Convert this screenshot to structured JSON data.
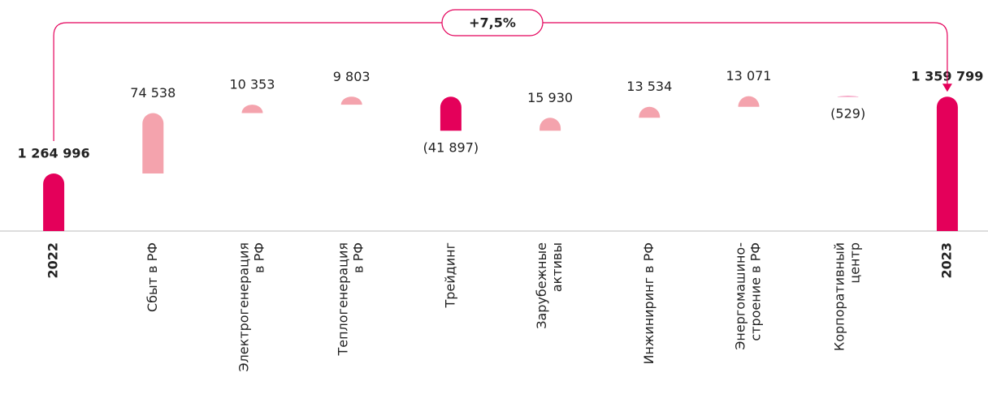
{
  "chart_data": {
    "type": "waterfall",
    "annotation": "+7,5%",
    "categories": [
      [
        "2022"
      ],
      [
        "Сбыт в РФ"
      ],
      [
        "Электрогенерация",
        "в РФ"
      ],
      [
        "Теплогенерация",
        "в РФ"
      ],
      [
        "Трейдинг"
      ],
      [
        "Зарубежные",
        "активы"
      ],
      [
        "Инжиниринг в РФ"
      ],
      [
        "Энергомашино-",
        "строение в РФ"
      ],
      [
        "Корпоративный",
        "центр"
      ],
      [
        "2023"
      ]
    ],
    "measures": [
      "total",
      "relative",
      "relative",
      "relative",
      "relative",
      "relative",
      "relative",
      "relative",
      "relative",
      "total"
    ],
    "values": [
      1264996,
      74538,
      10353,
      9803,
      -41897,
      15930,
      13534,
      13071,
      -529,
      1359799
    ],
    "value_labels": [
      "1 264 996",
      "74 538",
      "10 353",
      "9 803",
      "(41 897)",
      "15 930",
      "13 534",
      "13 071",
      "(529)",
      "1 359 799"
    ],
    "colors": {
      "total": "#e4005a",
      "increase": "#f4a3ad",
      "decrease": "#e4005a"
    },
    "ylim": [
      1194000,
      1479000
    ]
  }
}
